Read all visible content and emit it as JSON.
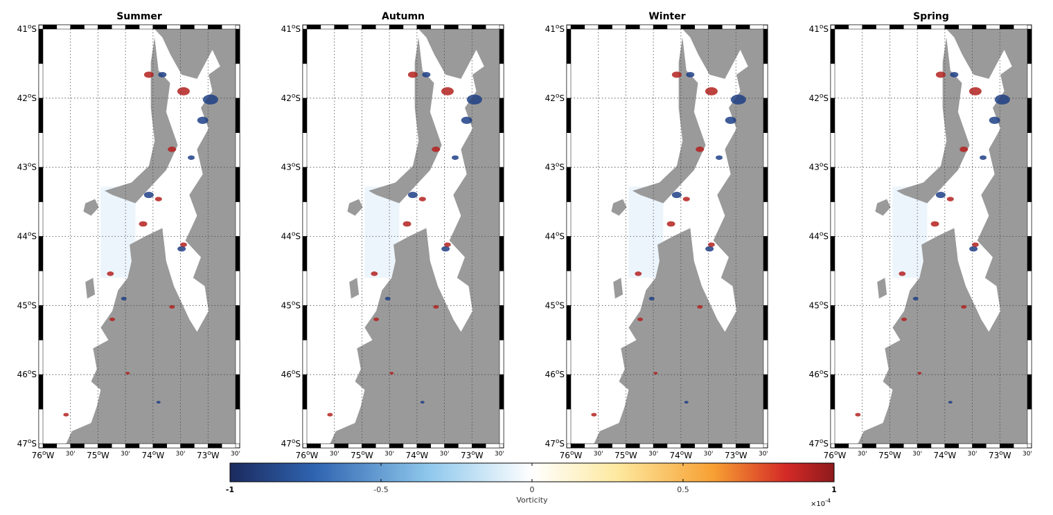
{
  "panels": [
    {
      "title": "Summer"
    },
    {
      "title": "Autumn"
    },
    {
      "title": "Winter"
    },
    {
      "title": "Spring"
    }
  ],
  "lat_labels": [
    {
      "deg": "41",
      "sup": "o",
      "hemi": "S"
    },
    {
      "deg": "42",
      "sup": "o",
      "hemi": "S"
    },
    {
      "deg": "43",
      "sup": "o",
      "hemi": "S"
    },
    {
      "deg": "44",
      "sup": "o",
      "hemi": "S"
    },
    {
      "deg": "45",
      "sup": "o",
      "hemi": "S"
    },
    {
      "deg": "46",
      "sup": "o",
      "hemi": "S"
    },
    {
      "deg": "47",
      "sup": "o",
      "hemi": "S"
    }
  ],
  "lon_labels": [
    {
      "text": "76",
      "sup": "o",
      "hemi": "W",
      "kind": "deg"
    },
    {
      "text": "30'",
      "kind": "min"
    },
    {
      "text": "75",
      "sup": "o",
      "hemi": "W",
      "kind": "deg"
    },
    {
      "text": "30'",
      "kind": "min"
    },
    {
      "text": "74",
      "sup": "o",
      "hemi": "W",
      "kind": "deg"
    },
    {
      "text": "30'",
      "kind": "min"
    },
    {
      "text": "73",
      "sup": "o",
      "hemi": "W",
      "kind": "deg"
    },
    {
      "text": "30'",
      "kind": "min"
    }
  ],
  "colorbar": {
    "label": "Vorticity",
    "ticks": [
      "-1",
      "-0.5",
      "0",
      "0.5",
      "1"
    ],
    "exponent_base": "×10",
    "exponent_power": "-4",
    "colors": [
      "#1b2a5e",
      "#2f64b0",
      "#8fc8ec",
      "#ffffff",
      "#fde9a0",
      "#f7a033",
      "#d42a26",
      "#8e1a1c"
    ]
  },
  "colors": {
    "land": "#9a9a9a",
    "frame_dark": "#000000",
    "frame_light": "#ffffff",
    "grid": "#444444"
  }
}
